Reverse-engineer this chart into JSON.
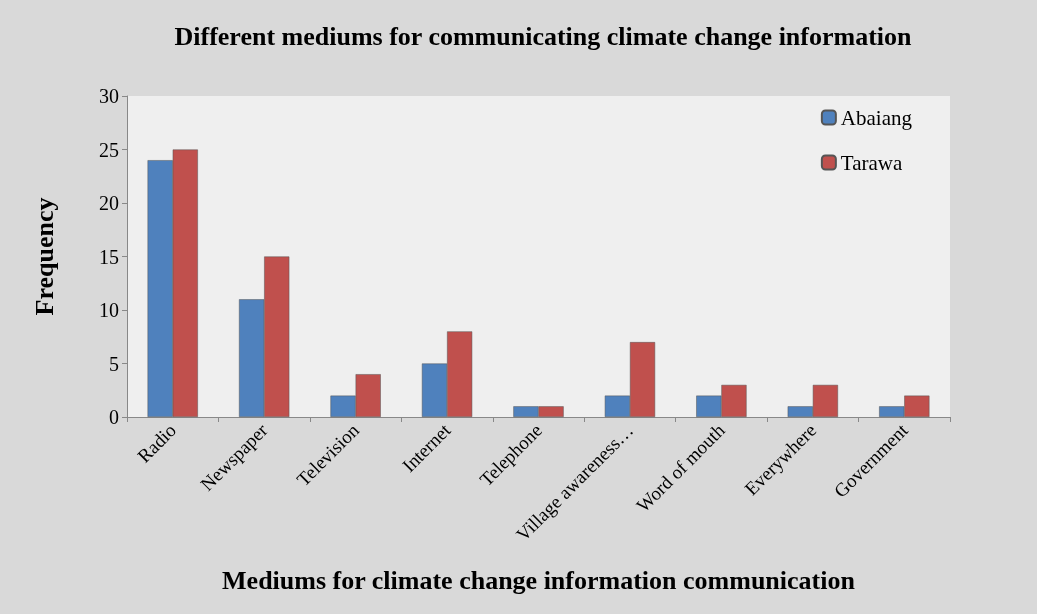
{
  "chart_data": {
    "type": "bar",
    "title": "Different mediums for communicating climate change information",
    "xlabel": "Mediums for climate change information communication",
    "ylabel": "Frequency",
    "categories": [
      "Radio",
      "Newspaper",
      "Television",
      "Internet",
      "Telephone",
      "Village awareness…",
      "Word of mouth",
      "Everywhere",
      "Government"
    ],
    "series": [
      {
        "name": "Abaiang",
        "color": "#4f81bd",
        "values": [
          24,
          11,
          2,
          5,
          1,
          2,
          2,
          1,
          1
        ]
      },
      {
        "name": "Tarawa",
        "color": "#c0504d",
        "values": [
          25,
          15,
          4,
          8,
          1,
          7,
          3,
          3,
          2
        ]
      }
    ],
    "ylim": [
      0,
      30
    ],
    "yticks": [
      0,
      5,
      10,
      15,
      20,
      25,
      30
    ],
    "grid": false,
    "legend": "top right"
  }
}
